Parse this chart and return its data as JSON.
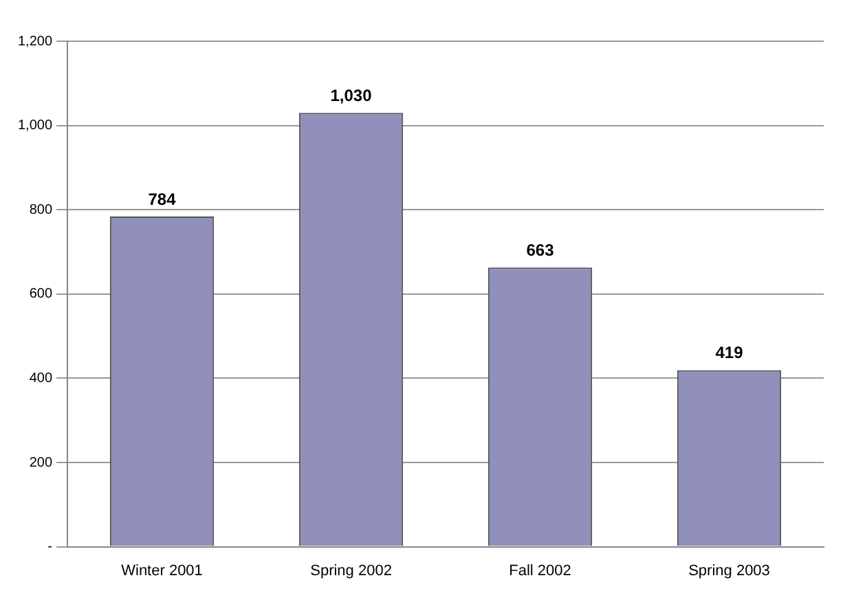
{
  "chart_data": {
    "type": "bar",
    "categories": [
      "Winter 2001",
      "Spring 2002",
      "Fall 2002",
      "Spring 2003"
    ],
    "values": [
      784,
      1030,
      663,
      419
    ],
    "value_labels": [
      "784",
      "1,030",
      "663",
      "419"
    ],
    "color": "#9090bb",
    "ylim": [
      0,
      1200
    ],
    "yticks": [
      {
        "value": 0,
        "label": "-"
      },
      {
        "value": 200,
        "label": "200"
      },
      {
        "value": 400,
        "label": "400"
      },
      {
        "value": 600,
        "label": "600"
      },
      {
        "value": 800,
        "label": "800"
      },
      {
        "value": 1000,
        "label": "1,000"
      },
      {
        "value": 1200,
        "label": "1,200"
      }
    ],
    "grid": "y",
    "legend": false
  }
}
